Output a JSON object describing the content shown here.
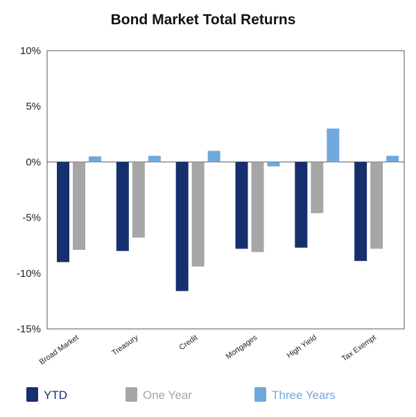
{
  "chart_data": {
    "type": "bar",
    "title": "Bond Market Total Returns",
    "xlabel": "",
    "ylabel": "",
    "ylim": [
      -15,
      10
    ],
    "yticks": [
      10,
      5,
      0,
      -5,
      -10,
      -15
    ],
    "ytick_labels": [
      "10%",
      "5%",
      "0%",
      "-5%",
      "-10%",
      "-15%"
    ],
    "categories": [
      "Broad Market",
      "Treasury",
      "Credit",
      "Mortgages",
      "High Yield",
      "Tax Exempt"
    ],
    "series": [
      {
        "name": "YTD",
        "color": "#162f6e",
        "values": [
          -9.0,
          -8.0,
          -11.6,
          -7.8,
          -7.7,
          -8.9
        ]
      },
      {
        "name": "One Year",
        "color": "#a6a6a6",
        "values": [
          -7.9,
          -6.8,
          -9.4,
          -8.1,
          -4.6,
          -7.8
        ]
      },
      {
        "name": "Three Years",
        "color": "#6fa8dc",
        "values": [
          0.5,
          0.55,
          1.0,
          -0.4,
          3.0,
          0.55
        ]
      }
    ],
    "grid": false,
    "legend": "bottom"
  }
}
